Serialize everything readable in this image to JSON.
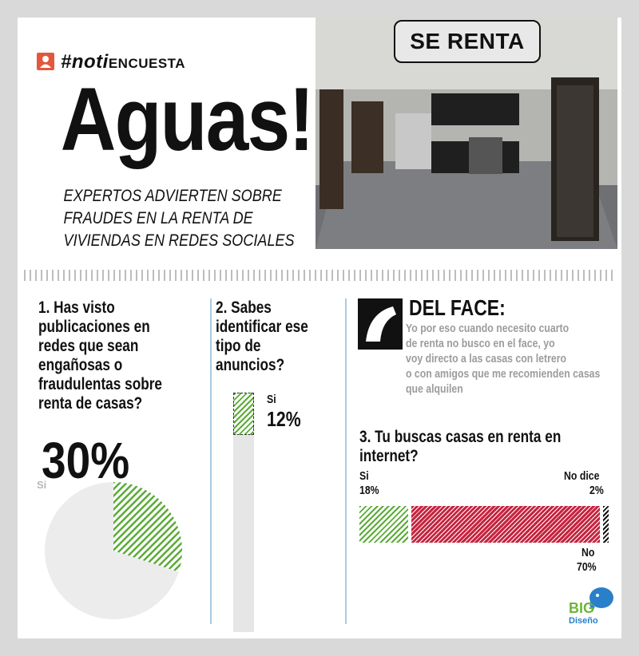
{
  "header": {
    "hashtag_prefix": "#noti",
    "hashtag_suffix": "ENCUESTA",
    "title": "Aguas!",
    "subtitle_lines": [
      "EXPERTOS ADVIERTEN SOBRE",
      "FRAUDES EN LA RENTA DE",
      "VIVIENDAS EN REDES SOCIALES"
    ]
  },
  "photo": {
    "badge": "SE RENTA"
  },
  "q1": {
    "lines": [
      "1. Has visto",
      "publicaciones en",
      "redes que sean",
      "engañosas o",
      "fraudulentas sobre",
      "renta de casas?"
    ],
    "percent": "30%",
    "label": "Si",
    "value": 0.3
  },
  "q2": {
    "lines": [
      "2. Sabes",
      "identificar ese",
      "tipo de",
      "anuncios?"
    ],
    "label": "Si",
    "percent": "12%",
    "value": 0.12
  },
  "face": {
    "title": "DEL FACE:",
    "lines": [
      "Yo por eso cuando necesito cuarto",
      "de renta no busco en el face, yo",
      "voy directo a las casas con letrero",
      "o con amigos que me recomienden casas",
      "que alquilen"
    ]
  },
  "q3": {
    "lines": [
      "3. Tu buscas casas en renta en",
      "internet?"
    ],
    "segments": [
      {
        "label": "Si",
        "percent": "18%",
        "value": 18,
        "color": "#5aab37"
      },
      {
        "label": "No",
        "percent": "70%",
        "value": 70,
        "color": "#c6243f"
      },
      {
        "label": "No dice",
        "percent": "2%",
        "value": 2,
        "color": "#111111"
      }
    ]
  },
  "logo": {
    "big": "BIG",
    "brand": "Diseño"
  },
  "colors": {
    "green": "#5aab37",
    "red": "#c6243f",
    "accent": "#e4573d",
    "divider_blue": "#a9cbe0"
  }
}
